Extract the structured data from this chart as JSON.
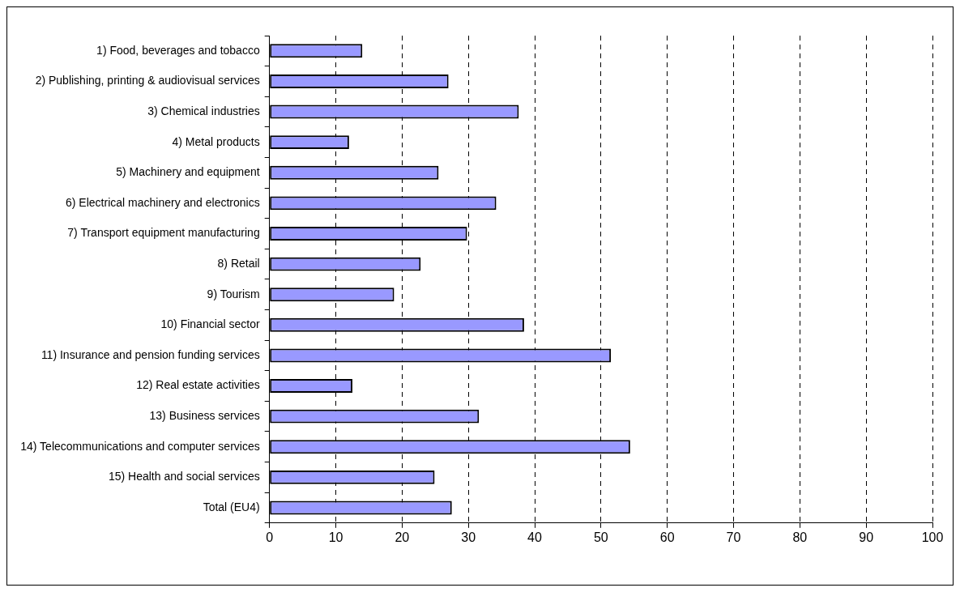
{
  "chart_data": {
    "type": "bar",
    "orientation": "horizontal",
    "categories": [
      "1) Food, beverages and tobacco",
      "2) Publishing, printing & audiovisual services",
      "3) Chemical industries",
      "4) Metal products",
      "5) Machinery and equipment",
      "6) Electrical machinery and electronics",
      "7) Transport equipment manufacturing",
      "8) Retail",
      "9) Tourism",
      "10) Financial sector",
      "11) Insurance and pension funding services",
      "12) Real estate activities",
      "13) Business services",
      "14) Telecommunications and computer services",
      "15) Health and social services",
      "Total (EU4)"
    ],
    "values": [
      14,
      27,
      37.6,
      12,
      25.5,
      34.2,
      29.8,
      22.8,
      18.8,
      38.4,
      51.5,
      12.5,
      31.6,
      54.4,
      24.9,
      27.5
    ],
    "color": "#9999ff",
    "xlim": [
      0,
      100
    ],
    "xticks": [
      0,
      10,
      20,
      30,
      40,
      50,
      60,
      70,
      80,
      90,
      100
    ],
    "grid": "x",
    "legend": false
  }
}
